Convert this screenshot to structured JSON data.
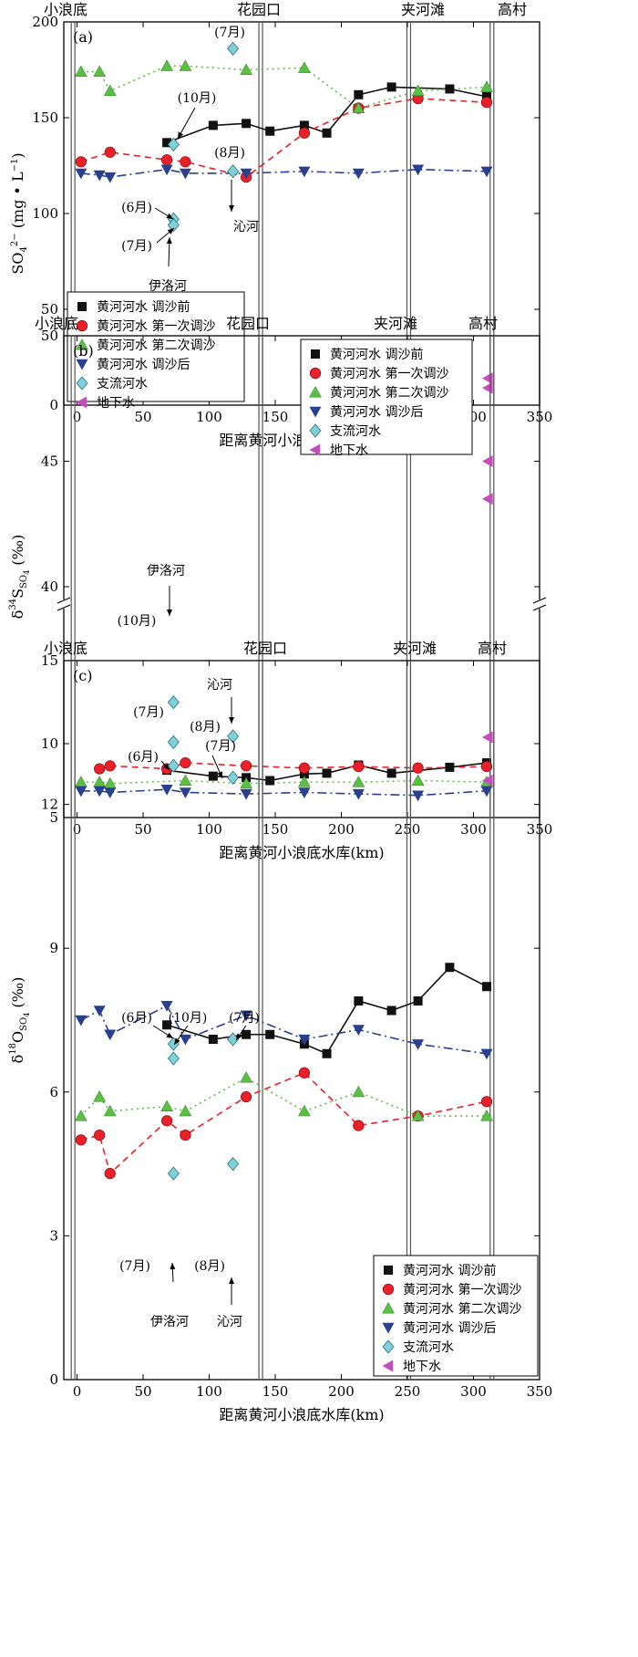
{
  "colors": {
    "before": "#111111",
    "first": "#e8202a",
    "second": "#5bbf45",
    "after": "#2b3f8f",
    "tributary": "#7fd0d8",
    "groundwater": "#c34fb8"
  },
  "stations": [
    "小浪底",
    "花园口",
    "夹河滩",
    "高村"
  ],
  "legend": [
    {
      "key": "before",
      "label": "黄河河水 调沙前",
      "marker": "square"
    },
    {
      "key": "first",
      "label": "黄河河水 第一次调沙",
      "marker": "circle"
    },
    {
      "key": "second",
      "label": "黄河河水 第二次调沙",
      "marker": "triangle-up"
    },
    {
      "key": "after",
      "label": "黄河河水 调沙后",
      "marker": "triangle-down"
    },
    {
      "key": "tributary",
      "label": "支流河水",
      "marker": "diamond"
    },
    {
      "key": "groundwater",
      "label": "地下水",
      "marker": "triangle-left"
    }
  ],
  "chart_data": [
    {
      "panel": "(a)",
      "type": "line",
      "xlabel": "距离黄河小浪底水库(km)",
      "ylabel": "SO4 2- (mg·L-1)",
      "xlim": [
        -10,
        350
      ],
      "ylim": [
        0,
        200
      ],
      "xticks": [
        0,
        50,
        100,
        150,
        200,
        250,
        300,
        350
      ],
      "yticks": [
        0,
        50,
        100,
        150,
        200
      ],
      "legend_position": "bottom-left",
      "series": [
        {
          "key": "before",
          "x": [
            68,
            103,
            128,
            146,
            172,
            189,
            213,
            238,
            282,
            310
          ],
          "y": [
            137,
            146,
            147,
            143,
            146,
            142,
            162,
            166,
            165,
            161
          ]
        },
        {
          "key": "first",
          "x": [
            3,
            25,
            68,
            82,
            128,
            172,
            213,
            258,
            310
          ],
          "y": [
            127,
            132,
            128,
            127,
            119,
            142,
            155,
            160,
            158
          ]
        },
        {
          "key": "second",
          "x": [
            3,
            17,
            25,
            68,
            82,
            128,
            172,
            213,
            258,
            310
          ],
          "y": [
            174,
            174,
            164,
            177,
            177,
            175,
            176,
            155,
            164,
            166
          ]
        },
        {
          "key": "after",
          "x": [
            3,
            17,
            25,
            68,
            82,
            128,
            172,
            213,
            258,
            310
          ],
          "y": [
            121,
            120,
            119,
            123,
            121,
            121,
            122,
            121,
            123,
            122
          ]
        },
        {
          "key": "tributary",
          "x": [
            73,
            73,
            73,
            118,
            118
          ],
          "y": [
            136,
            97,
            94,
            186,
            122
          ]
        },
        {
          "key": "groundwater",
          "x": [
            311,
            311
          ],
          "y": [
            14,
            9
          ]
        }
      ],
      "annotations": [
        {
          "text": "(7月)"
        },
        {
          "text": "(10月)"
        },
        {
          "text": "(8月)"
        },
        {
          "text": "沁河"
        },
        {
          "text": "(6月)"
        },
        {
          "text": "(7月)"
        },
        {
          "text": "伊洛河"
        }
      ]
    },
    {
      "panel": "(b)",
      "type": "line",
      "xlabel": "距离黄河小浪底水库(km)",
      "ylabel": "δ34S SO4 (‰)",
      "xlim": [
        -10,
        350
      ],
      "ylim": [
        5,
        50
      ],
      "axis_break": "between 13 and 40",
      "xticks": [
        0,
        50,
        100,
        150,
        200,
        250,
        300,
        350
      ],
      "yticks": [
        5,
        10,
        40,
        45,
        50
      ],
      "legend_position": "top-right",
      "series": [
        {
          "key": "before",
          "x": [
            68,
            103,
            128,
            146,
            172,
            189,
            213,
            238,
            282,
            310
          ],
          "y": [
            8.2,
            7.8,
            7.7,
            7.5,
            7.95,
            8.0,
            8.55,
            8.0,
            8.4,
            8.7
          ]
        },
        {
          "key": "first",
          "x": [
            17,
            25,
            68,
            82,
            128,
            172,
            213,
            258,
            310
          ],
          "y": [
            8.3,
            8.5,
            8.3,
            8.7,
            8.5,
            8.35,
            8.45,
            8.35,
            8.45
          ]
        },
        {
          "key": "second",
          "x": [
            3,
            17,
            25,
            82,
            128,
            172,
            213,
            258,
            310
          ],
          "y": [
            7.4,
            7.4,
            7.3,
            7.5,
            7.3,
            7.4,
            7.4,
            7.5,
            7.4
          ]
        },
        {
          "key": "after",
          "x": [
            3,
            17,
            25,
            68,
            82,
            128,
            172,
            213,
            258,
            310
          ],
          "y": [
            6.8,
            6.8,
            6.7,
            6.9,
            6.7,
            6.6,
            6.7,
            6.6,
            6.5,
            6.8
          ]
        },
        {
          "key": "tributary",
          "x": [
            73,
            73,
            73,
            118,
            118
          ],
          "y": [
            12.8,
            10.1,
            8.5,
            10.5,
            7.7
          ]
        },
        {
          "key": "groundwater",
          "x": [
            311,
            311
          ],
          "y": [
            45,
            43.5
          ]
        }
      ],
      "annotations": [
        {
          "text": "伊洛河"
        },
        {
          "text": "(10月)"
        },
        {
          "text": "沁河"
        },
        {
          "text": "(7月)"
        },
        {
          "text": "(8月)"
        },
        {
          "text": "(6月)"
        },
        {
          "text": "(7月)"
        }
      ]
    },
    {
      "panel": "(c)",
      "type": "line",
      "xlabel": "距离黄河小浪底水库(km)",
      "ylabel": "δ18O SO4 (‰)",
      "xlim": [
        -10,
        350
      ],
      "ylim": [
        0,
        15
      ],
      "xticks": [
        0,
        50,
        100,
        150,
        200,
        250,
        300,
        350
      ],
      "yticks": [
        0,
        3,
        6,
        9,
        12,
        15
      ],
      "legend_position": "bottom-right",
      "series": [
        {
          "key": "before",
          "x": [
            68,
            103,
            128,
            146,
            172,
            189,
            213,
            238,
            258,
            282,
            310
          ],
          "y": [
            7.4,
            7.1,
            7.2,
            7.2,
            7.0,
            6.8,
            7.9,
            7.7,
            7.9,
            8.6,
            8.2
          ]
        },
        {
          "key": "first",
          "x": [
            3,
            17,
            25,
            68,
            82,
            128,
            172,
            213,
            258,
            310
          ],
          "y": [
            5.0,
            5.1,
            4.3,
            5.4,
            5.1,
            5.9,
            6.4,
            5.3,
            5.5,
            5.8
          ]
        },
        {
          "key": "second",
          "x": [
            3,
            17,
            25,
            68,
            82,
            128,
            172,
            213,
            258,
            310
          ],
          "y": [
            5.5,
            5.9,
            5.6,
            5.7,
            5.6,
            6.3,
            5.6,
            6.0,
            5.5,
            5.5
          ]
        },
        {
          "key": "after",
          "x": [
            3,
            17,
            25,
            68,
            82,
            128,
            172,
            213,
            258,
            310
          ],
          "y": [
            7.5,
            7.7,
            7.2,
            7.8,
            7.1,
            7.6,
            7.1,
            7.3,
            7.0,
            6.8
          ]
        },
        {
          "key": "tributary",
          "x": [
            73,
            73,
            73,
            118,
            118
          ],
          "y": [
            7.0,
            6.7,
            4.3,
            7.1,
            4.5
          ]
        },
        {
          "key": "groundwater",
          "x": [
            311,
            311
          ],
          "y": [
            13.4,
            12.5
          ]
        }
      ],
      "annotations": [
        {
          "text": "(6月)"
        },
        {
          "text": "(10月)"
        },
        {
          "text": "(7月)"
        },
        {
          "text": "(7月)"
        },
        {
          "text": "(8月)"
        },
        {
          "text": "伊洛河"
        },
        {
          "text": "沁河"
        }
      ]
    }
  ]
}
